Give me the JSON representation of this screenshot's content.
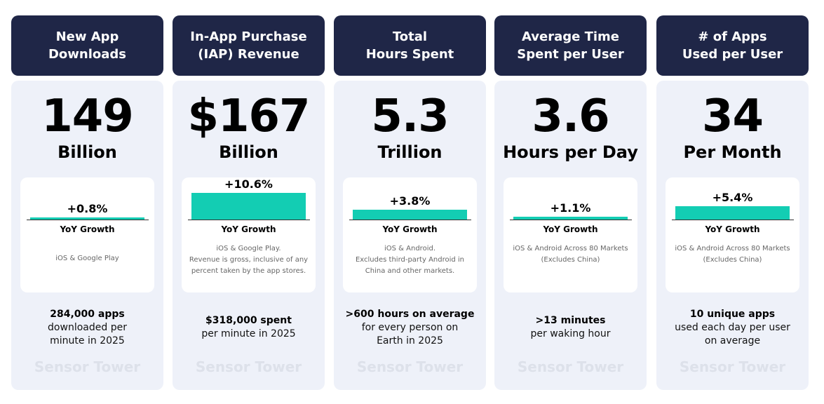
{
  "watermark": "Sensor Tower",
  "growth_caption": "YoY Growth",
  "cards": [
    {
      "title": [
        "New App",
        "Downloads"
      ],
      "value": "149",
      "unit": "Billion",
      "growth": 0.8,
      "growth_label": "+0.8%",
      "notes": [
        "iOS & Google Play"
      ],
      "footer_bold": "284,000 apps",
      "footer": [
        "downloaded per",
        "minute in 2025"
      ]
    },
    {
      "title": [
        "In-App Purchase",
        "(IAP) Revenue"
      ],
      "value": "$167",
      "unit": "Billion",
      "growth": 10.6,
      "growth_label": "+10.6%",
      "notes": [
        "iOS & Google Play.",
        "Revenue is gross, inclusive of any",
        "percent taken by the app stores."
      ],
      "footer_bold": "$318,000 spent",
      "footer": [
        "per minute in 2025"
      ]
    },
    {
      "title": [
        "Total",
        "Hours Spent"
      ],
      "value": "5.3",
      "unit": "Trillion",
      "growth": 3.8,
      "growth_label": "+3.8%",
      "notes": [
        "iOS & Android.",
        "Excludes third-party Android in",
        "China and other markets."
      ],
      "footer_bold": ">600 hours on average",
      "footer": [
        "for every person on",
        "Earth in 2025"
      ]
    },
    {
      "title": [
        "Average Time",
        "Spent per User"
      ],
      "value": "3.6",
      "unit": "Hours per Day",
      "growth": 1.1,
      "growth_label": "+1.1%",
      "notes": [
        "iOS & Android Across 80 Markets",
        "(Excludes China)"
      ],
      "footer_bold": ">13 minutes",
      "footer": [
        "per waking hour"
      ]
    },
    {
      "title": [
        "# of Apps",
        "Used per User"
      ],
      "value": "34",
      "unit": "Per Month",
      "growth": 5.4,
      "growth_label": "+5.4%",
      "notes": [
        "iOS & Android Across 80 Markets",
        "(Excludes China)"
      ],
      "footer_bold": "10 unique apps",
      "footer": [
        "used each day per user",
        "on average"
      ]
    }
  ]
}
